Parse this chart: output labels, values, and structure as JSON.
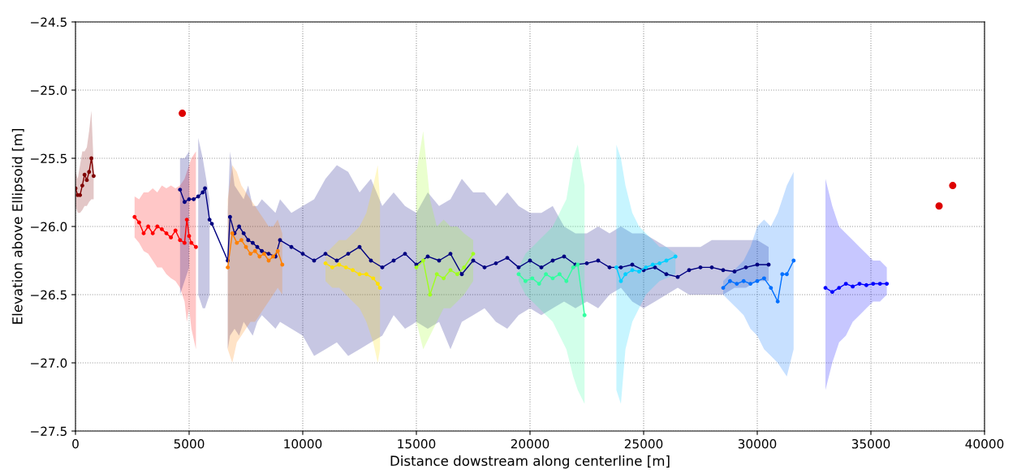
{
  "chart_data": {
    "type": "line",
    "xlabel": "Distance dowstream along centerline [m]",
    "ylabel": "Elevation above Ellipsoid [m]",
    "xlim": [
      0,
      40000
    ],
    "xticks": [
      0,
      5000,
      10000,
      15000,
      20000,
      25000,
      30000,
      35000,
      40000
    ],
    "ylim": [
      -27.5,
      -24.5
    ],
    "yticks": [
      -27.5,
      {
        "value": -27,
        "label": "−27.0"
      },
      -26.5,
      {
        "value": -26,
        "label": "−26.0"
      },
      -25.5,
      {
        "value": -25,
        "label": "−25.0"
      },
      -24.5
    ],
    "grid": true,
    "marker": "circle",
    "line_style": "solid",
    "series": [
      {
        "color": "#800000",
        "x": [
          0,
          100,
          200,
          300,
          400,
          500,
          600,
          700,
          800
        ],
        "values": [
          -25.72,
          -25.77,
          -25.77,
          -25.7,
          -25.62,
          -25.66,
          -25.6,
          -25.5,
          -25.63
        ],
        "lower": [
          -25.85,
          -25.9,
          -25.9,
          -25.88,
          -25.85,
          -25.85,
          -25.82,
          -25.8,
          -25.8
        ],
        "upper": [
          -25.6,
          -25.65,
          -25.55,
          -25.45,
          -25.45,
          -25.42,
          -25.3,
          -25.15,
          -25.55
        ]
      },
      {
        "color": "#ff0000",
        "x": [
          2600,
          2800,
          3000,
          3200,
          3400,
          3600,
          3800,
          4000,
          4200,
          4400,
          4600,
          4800,
          4900,
          5000,
          5100,
          5300
        ],
        "values": [
          -25.93,
          -25.97,
          -26.05,
          -26.0,
          -26.05,
          -26.0,
          -26.02,
          -26.05,
          -26.08,
          -26.03,
          -26.1,
          -26.12,
          -25.95,
          -26.07,
          -26.12,
          -26.15
        ],
        "lower": [
          -26.08,
          -26.12,
          -26.18,
          -26.2,
          -26.25,
          -26.3,
          -26.3,
          -26.35,
          -26.38,
          -26.4,
          -26.45,
          -26.55,
          -26.7,
          -26.6,
          -26.75,
          -26.9
        ],
        "upper": [
          -25.78,
          -25.8,
          -25.75,
          -25.75,
          -25.72,
          -25.75,
          -25.7,
          -25.72,
          -25.7,
          -25.72,
          -25.7,
          -25.65,
          -25.6,
          -25.55,
          -25.5,
          -25.45
        ]
      },
      {
        "color": "#000080",
        "x": [
          4600,
          4800,
          5000,
          5200,
          5400,
          5600,
          5700,
          5900,
          6000,
          6700,
          6800,
          7000,
          7200,
          7400,
          7600,
          7800,
          8000,
          8200,
          8500,
          8800,
          9000,
          9500,
          10000,
          10500,
          11000,
          11500,
          12000,
          12500,
          13000,
          13500,
          14000,
          14500,
          15000,
          15500,
          16000,
          16500,
          17000,
          17500,
          18000,
          18500,
          19000,
          19500,
          20000,
          20500,
          21000,
          21500,
          22000,
          22500,
          23000,
          23500,
          24000,
          24500,
          25000,
          25500,
          26000,
          26500,
          27000,
          27500,
          28000,
          28500,
          29000,
          29500,
          30000,
          30500
        ],
        "values": [
          -25.73,
          -25.82,
          -25.8,
          -25.8,
          -25.78,
          -25.75,
          -25.72,
          -25.95,
          -25.98,
          -26.25,
          -25.93,
          -26.05,
          -26.0,
          -26.05,
          -26.1,
          -26.12,
          -26.15,
          -26.18,
          -26.2,
          -26.22,
          -26.1,
          -26.15,
          -26.2,
          -26.25,
          -26.2,
          -26.25,
          -26.2,
          -26.15,
          -26.25,
          -26.3,
          -26.25,
          -26.2,
          -26.28,
          -26.22,
          -26.25,
          -26.2,
          -26.35,
          -26.25,
          -26.3,
          -26.27,
          -26.23,
          -26.3,
          -26.25,
          -26.3,
          -26.25,
          -26.22,
          -26.28,
          -26.27,
          -26.25,
          -26.3,
          -26.3,
          -26.28,
          -26.32,
          -26.3,
          -26.35,
          -26.37,
          -26.32,
          -26.3,
          -26.3,
          -26.32,
          -26.33,
          -26.3,
          -26.28,
          -26.28
        ],
        "upper": [
          -25.5,
          -25.5,
          -25.45,
          null,
          -25.35,
          -25.5,
          -25.6,
          -25.8,
          null,
          -25.9,
          -25.45,
          -25.7,
          -25.75,
          -25.8,
          -25.7,
          -25.85,
          -25.85,
          -25.8,
          -25.85,
          -25.9,
          -25.8,
          -25.9,
          -25.85,
          -25.8,
          -25.65,
          -25.55,
          -25.6,
          -25.75,
          -25.65,
          -25.85,
          -25.75,
          -25.85,
          -25.9,
          -25.75,
          -25.85,
          -25.8,
          -25.65,
          -25.75,
          -25.75,
          -25.85,
          -25.75,
          -25.85,
          -25.9,
          -25.9,
          -25.85,
          -26.0,
          -26.05,
          -26.05,
          -26.0,
          -26.05,
          -26.0,
          -26.05,
          -26.05,
          -26.1,
          -26.15,
          -26.15,
          -26.15,
          -26.15,
          -26.1,
          -26.1,
          -26.1,
          -26.1,
          -26.1,
          -26.15
        ],
        "lower": [
          -26.5,
          -26.4,
          -26.3,
          null,
          -26.5,
          -26.6,
          -26.6,
          -26.5,
          null,
          -26.9,
          -26.8,
          -26.75,
          -26.8,
          -26.7,
          -26.75,
          -26.8,
          -26.7,
          -26.65,
          -26.7,
          -26.75,
          -26.7,
          -26.75,
          -26.8,
          -26.95,
          -26.9,
          -26.85,
          -26.95,
          -26.9,
          -26.85,
          -26.8,
          -26.65,
          -26.75,
          -26.7,
          -26.75,
          -26.7,
          -26.9,
          -26.7,
          -26.65,
          -26.6,
          -26.7,
          -26.75,
          -26.65,
          -26.6,
          -26.65,
          -26.6,
          -26.55,
          -26.6,
          -26.55,
          -26.6,
          -26.5,
          -26.45,
          -26.55,
          -26.6,
          -26.55,
          -26.5,
          -26.45,
          -26.5,
          -26.5,
          -26.5,
          -26.5,
          -26.45,
          -26.45,
          -26.4,
          -26.4
        ]
      },
      {
        "color": "#ff8000",
        "x": [
          6700,
          6900,
          7100,
          7300,
          7500,
          7700,
          7900,
          8100,
          8300,
          8500,
          8700,
          8900,
          9100
        ],
        "values": [
          -26.3,
          -26.05,
          -26.12,
          -26.1,
          -26.15,
          -26.2,
          -26.18,
          -26.22,
          -26.2,
          -26.25,
          -26.22,
          -26.18,
          -26.28
        ],
        "lower": [
          -26.9,
          -27.0,
          -26.85,
          -26.8,
          -26.75,
          -26.7,
          -26.7,
          -26.65,
          -26.6,
          -26.55,
          -26.5,
          -26.45,
          -26.5
        ],
        "upper": [
          -25.8,
          -25.55,
          -25.6,
          -25.7,
          -25.75,
          -25.8,
          -25.85,
          -25.9,
          -25.95,
          -26.0,
          -26.0,
          -25.95,
          -26.05
        ]
      },
      {
        "color": "#ffe000",
        "x": [
          11000,
          11300,
          11600,
          11900,
          12200,
          12500,
          12800,
          13100,
          13300,
          13400
        ],
        "values": [
          -26.27,
          -26.3,
          -26.28,
          -26.3,
          -26.32,
          -26.35,
          -26.35,
          -26.38,
          -26.42,
          -26.45
        ],
        "lower": [
          -26.4,
          -26.45,
          -26.45,
          -26.5,
          -26.55,
          -26.6,
          -26.7,
          -26.85,
          -27.0,
          -26.9
        ],
        "upper": [
          -26.2,
          -26.15,
          -26.1,
          -26.1,
          -26.05,
          -26.0,
          -25.9,
          -25.7,
          -25.55,
          -25.8
        ]
      },
      {
        "color": "#a0ff20",
        "x": [
          15000,
          15300,
          15600,
          15900,
          16200,
          16500,
          16800,
          17100,
          17500
        ],
        "values": [
          -26.3,
          -26.25,
          -26.5,
          -26.35,
          -26.38,
          -26.32,
          -26.35,
          -26.3,
          -26.2
        ],
        "lower": [
          -26.7,
          -26.9,
          -26.8,
          -26.7,
          -26.6,
          -26.6,
          -26.55,
          -26.5,
          -26.4
        ],
        "upper": [
          -25.6,
          -25.3,
          -25.8,
          -26.0,
          -25.95,
          -26.0,
          -26.0,
          -26.05,
          -26.1
        ]
      },
      {
        "color": "#30ffa0",
        "x": [
          19500,
          19800,
          20100,
          20400,
          20700,
          21000,
          21300,
          21600,
          21900,
          22100,
          22400
        ],
        "values": [
          -26.35,
          -26.4,
          -26.38,
          -26.42,
          -26.35,
          -26.38,
          -26.35,
          -26.4,
          -26.3,
          -26.28,
          -26.65
        ],
        "lower": [
          -26.4,
          -26.5,
          -26.55,
          -26.6,
          -26.65,
          -26.7,
          -26.8,
          -26.9,
          -27.1,
          -27.2,
          -27.3
        ],
        "upper": [
          -26.3,
          -26.2,
          -26.15,
          -26.1,
          -26.05,
          -26.0,
          -25.9,
          -25.8,
          -25.5,
          -25.4,
          -25.7
        ]
      },
      {
        "color": "#00d0ff",
        "x": [
          23800,
          24000,
          24200,
          24500,
          24800,
          25100,
          25400,
          25700,
          26000,
          26400
        ],
        "values": [
          -26.3,
          -26.4,
          -26.35,
          -26.32,
          -26.33,
          -26.3,
          -26.28,
          -26.27,
          -26.25,
          -26.22
        ],
        "lower": [
          -27.2,
          -27.3,
          -26.9,
          -26.7,
          -26.6,
          -26.5,
          -26.45,
          -26.4,
          -26.38,
          -26.35
        ],
        "upper": [
          -25.4,
          -25.5,
          -25.7,
          -25.9,
          -26.0,
          -26.05,
          -26.1,
          -26.15,
          -26.15,
          -26.2
        ]
      },
      {
        "color": "#0070ff",
        "x": [
          28500,
          28800,
          29100,
          29400,
          29700,
          30000,
          30300,
          30600,
          30900,
          31100,
          31300,
          31600
        ],
        "values": [
          -26.45,
          -26.4,
          -26.42,
          -26.4,
          -26.42,
          -26.4,
          -26.38,
          -26.45,
          -26.55,
          -26.35,
          -26.35,
          -26.25
        ],
        "lower": [
          -26.5,
          -26.55,
          -26.6,
          -26.65,
          -26.75,
          -26.8,
          -26.9,
          -26.95,
          -27.0,
          -27.05,
          -27.1,
          -26.9
        ],
        "upper": [
          -26.4,
          -26.35,
          -26.3,
          -26.25,
          -26.15,
          -26.0,
          -25.95,
          -26.0,
          -25.9,
          -25.8,
          -25.7,
          -25.6
        ]
      },
      {
        "color": "#0000ff",
        "x": [
          33000,
          33300,
          33600,
          33900,
          34200,
          34500,
          34800,
          35100,
          35400,
          35700
        ],
        "values": [
          -26.45,
          -26.48,
          -26.45,
          -26.42,
          -26.44,
          -26.42,
          -26.43,
          -26.42,
          -26.42,
          -26.42
        ],
        "lower": [
          -27.2,
          -27.0,
          -26.85,
          -26.8,
          -26.7,
          -26.65,
          -26.6,
          -26.55,
          -26.55,
          -26.5
        ],
        "upper": [
          -25.65,
          -25.85,
          -26.0,
          -26.05,
          -26.1,
          -26.15,
          -26.2,
          -26.25,
          -26.25,
          -26.3
        ]
      },
      {
        "type": "scatter",
        "color": "#dd0000",
        "x": [
          4700,
          38000,
          38600
        ],
        "values": [
          -25.17,
          -25.85,
          -25.7
        ]
      }
    ]
  }
}
